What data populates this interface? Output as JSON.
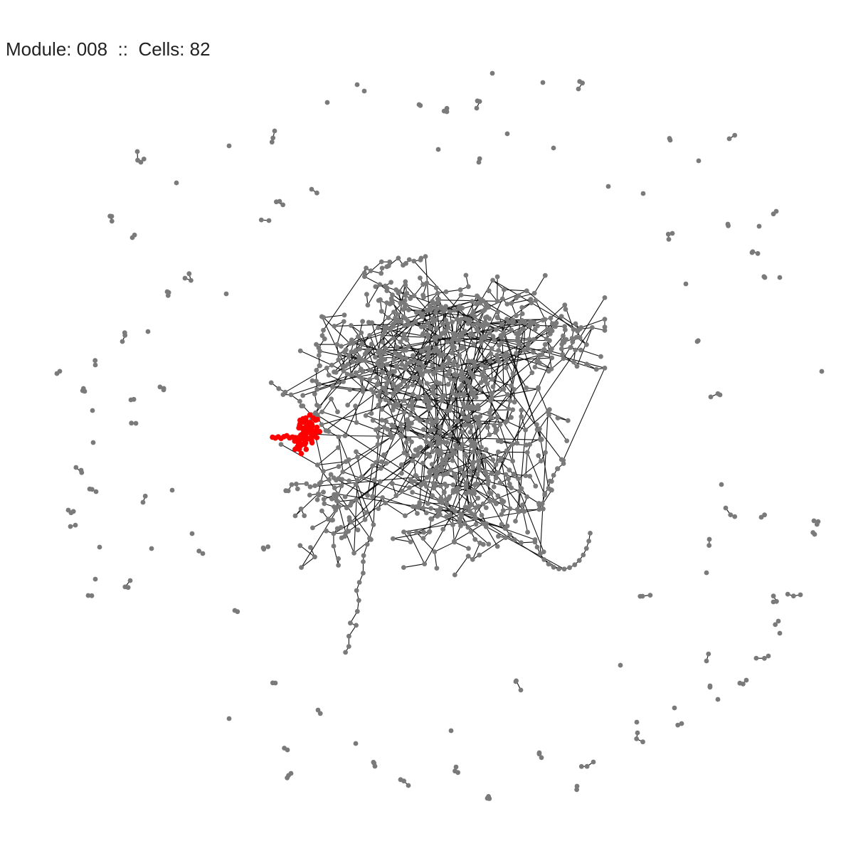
{
  "title": "Module: 008  ::  Cells: 82",
  "module": "008",
  "cells": 82,
  "colors": {
    "background": "#ffffff",
    "node": "#7a7a7a",
    "highlight": "#ff0000",
    "edge": "#111111",
    "title": "#222222"
  }
}
